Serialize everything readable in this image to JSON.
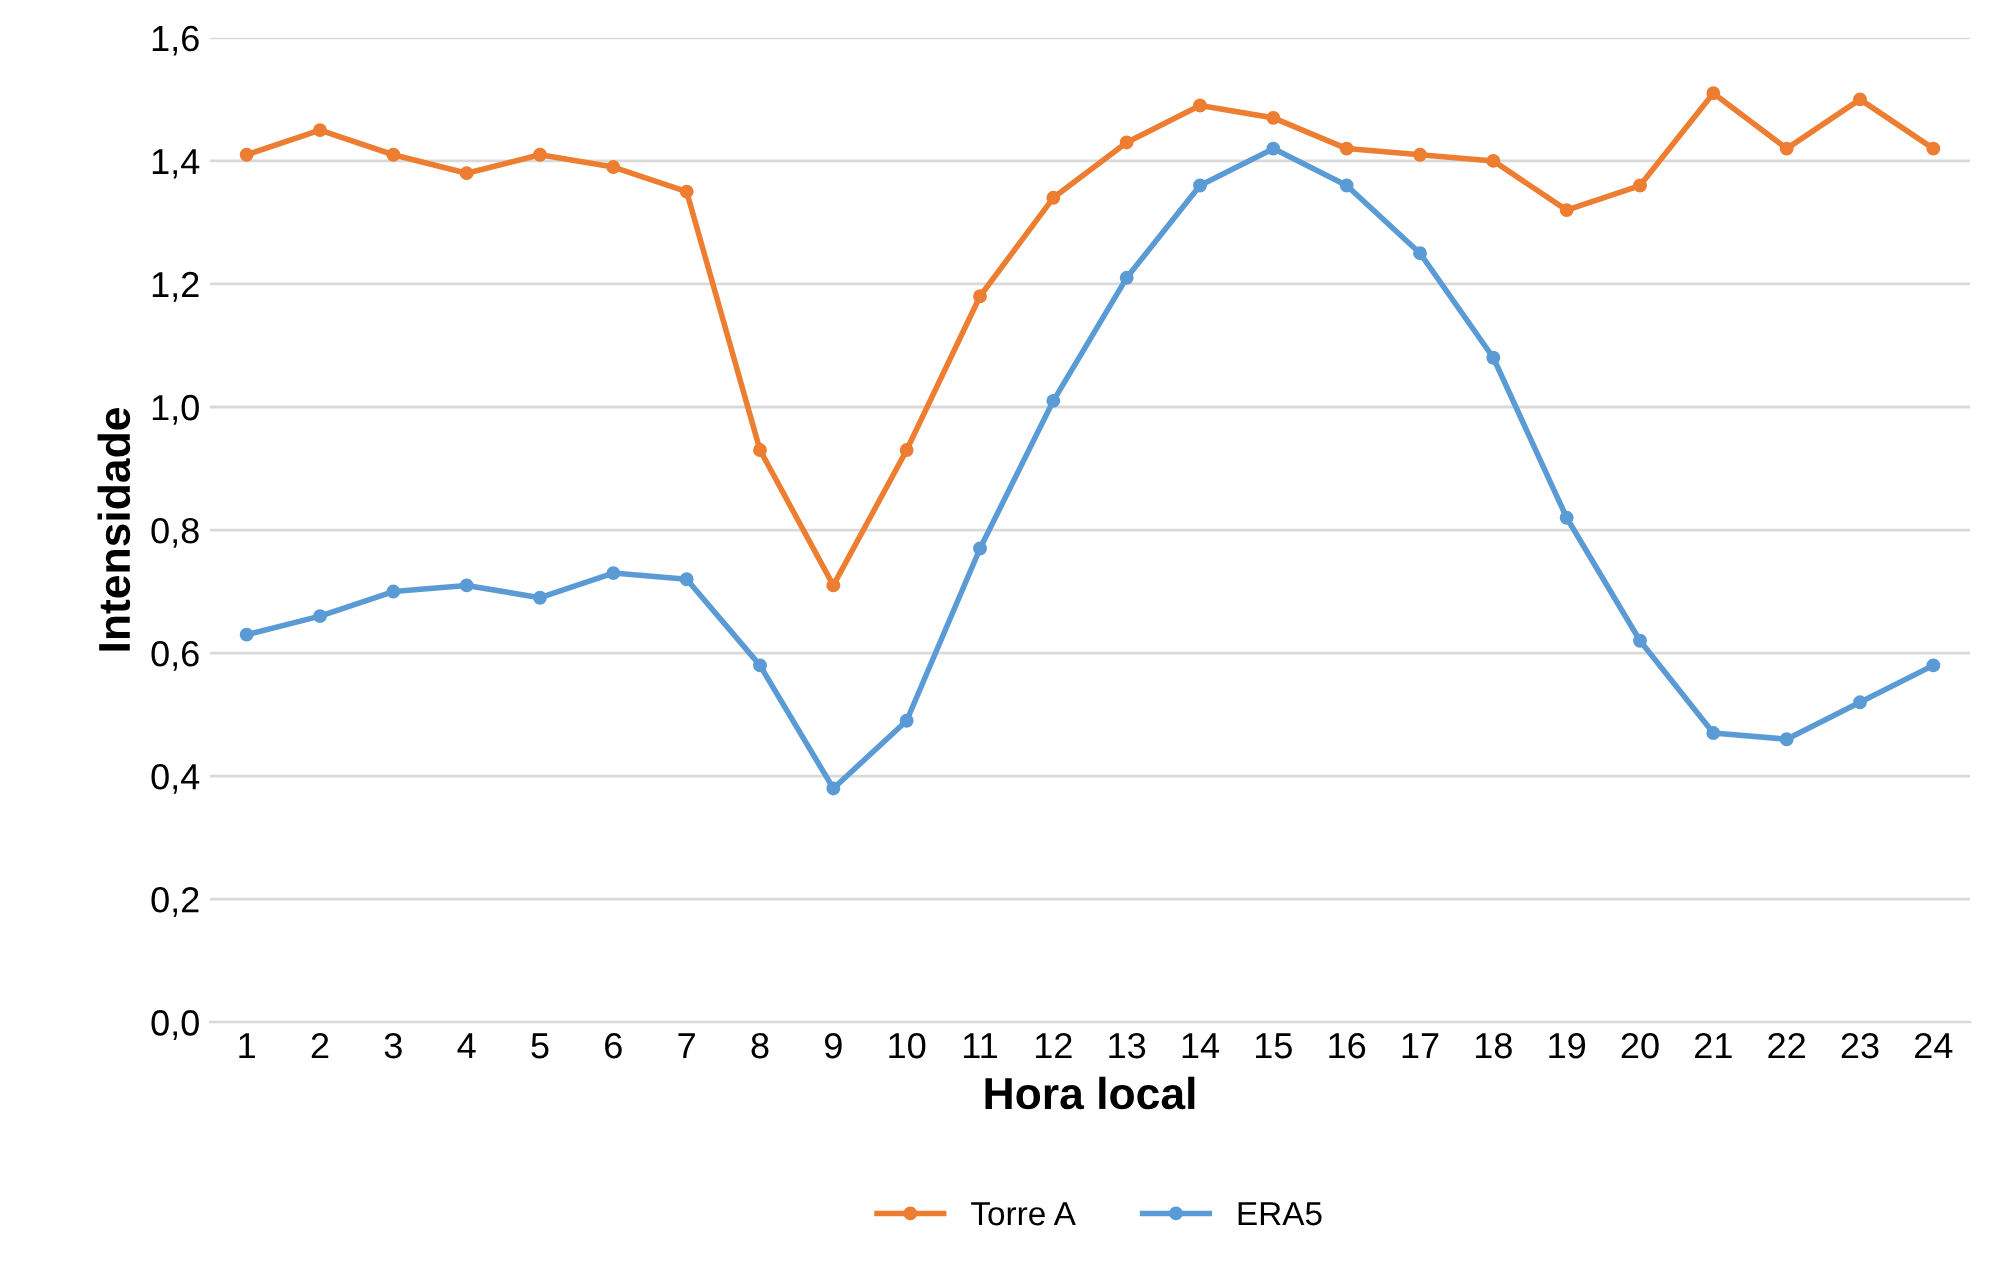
{
  "chart_data": {
    "type": "line",
    "xlabel": "Hora local",
    "ylabel": "Intensidade",
    "categories": [
      "1",
      "2",
      "3",
      "4",
      "5",
      "6",
      "7",
      "8",
      "9",
      "10",
      "11",
      "12",
      "13",
      "14",
      "15",
      "16",
      "17",
      "18",
      "19",
      "20",
      "21",
      "22",
      "23",
      "24"
    ],
    "series": [
      {
        "name": "Torre A",
        "color": "#ed7d31",
        "values": [
          1.41,
          1.45,
          1.41,
          1.38,
          1.41,
          1.39,
          1.35,
          0.93,
          0.71,
          0.93,
          1.18,
          1.34,
          1.43,
          1.49,
          1.47,
          1.42,
          1.41,
          1.4,
          1.32,
          1.36,
          1.51,
          1.42,
          1.5,
          1.42
        ]
      },
      {
        "name": "ERA5",
        "color": "#5b9bd5",
        "values": [
          0.63,
          0.66,
          0.7,
          0.71,
          0.69,
          0.73,
          0.72,
          0.58,
          0.38,
          0.49,
          0.77,
          1.01,
          1.21,
          1.36,
          1.42,
          1.36,
          1.25,
          1.08,
          0.82,
          0.62,
          0.47,
          0.46,
          0.52,
          0.58
        ]
      }
    ],
    "ylim": [
      0,
      1.6
    ],
    "yticks": [
      {
        "value": 0,
        "label": "0,0"
      },
      {
        "value": 0.2,
        "label": "0,2"
      },
      {
        "value": 0.4,
        "label": "0,4"
      },
      {
        "value": 0.6,
        "label": "0,6"
      },
      {
        "value": 0.8,
        "label": "0,8"
      },
      {
        "value": 1.0,
        "label": "1,0"
      },
      {
        "value": 1.2,
        "label": "1,2"
      },
      {
        "value": 1.4,
        "label": "1,4"
      },
      {
        "value": 1.6,
        "label": "1,6"
      }
    ],
    "grid": "y",
    "legend": "bottom",
    "marker": "circle",
    "line_style": "solid"
  }
}
